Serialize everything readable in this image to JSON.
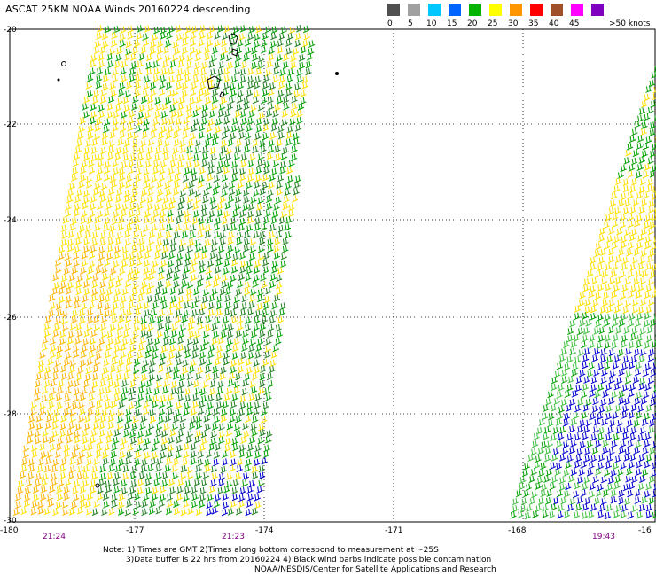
{
  "title": "ASCAT 25KM NOAA Winds 20160224 descending",
  "color_scale": {
    "unit_label": "knots",
    "bins": [
      {
        "color": "#505050",
        "label": "0"
      },
      {
        "color": "#a0a0a0",
        "label": "5"
      },
      {
        "color": "#00c8ff",
        "label": "10"
      },
      {
        "color": "#0064ff",
        "label": "15"
      },
      {
        "color": "#00b400",
        "label": "20"
      },
      {
        "color": "#ffff00",
        "label": "25"
      },
      {
        "color": "#ff9600",
        "label": "30"
      },
      {
        "color": "#ff0000",
        "label": "35"
      },
      {
        "color": "#a05028",
        "label": "40"
      },
      {
        "color": "#ff00ff",
        "label": "45"
      },
      {
        "color": "#8000c0",
        "label": ">50 knots"
      }
    ]
  },
  "latitude_labels": [
    "-20",
    "-22",
    "-24",
    "-26",
    "-28",
    "-30"
  ],
  "longitude_labels": [
    "-180",
    "-177",
    "-174",
    "-171",
    "-168",
    "-16"
  ],
  "pass_times": [
    "21:24",
    "21:23",
    "19:43"
  ],
  "notes": [
    "Note: 1) Times are GMT 2)Times along bottom correspond to measurement at ~25S",
    "3)Data buffer is 22 hrs from 20160224 4) Black wind barbs indicate possible contamination",
    "NOAA/NESDIS/Center for Satellite Applications and Research"
  ],
  "swaths": [
    {
      "name": "western-swath",
      "dominant_speed_knots": "20-30"
    },
    {
      "name": "eastern-swath",
      "dominant_speed_knots": "15-25"
    }
  ]
}
